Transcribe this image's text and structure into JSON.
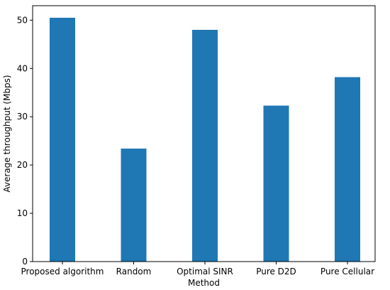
{
  "chart_data": {
    "type": "bar",
    "title": "",
    "xlabel": "Method",
    "ylabel": "Average throughput (Mbps)",
    "categories": [
      "Proposed algorithm",
      "Random",
      "Optimal SINR",
      "Pure D2D",
      "Pure Cellular"
    ],
    "values": [
      50.5,
      23.4,
      48.0,
      32.3,
      38.2
    ],
    "ylim": [
      0,
      53
    ],
    "yticks": [
      0,
      10,
      20,
      30,
      40,
      50
    ],
    "grid": false,
    "legend": "none",
    "bar_color": "#1f77b4"
  }
}
